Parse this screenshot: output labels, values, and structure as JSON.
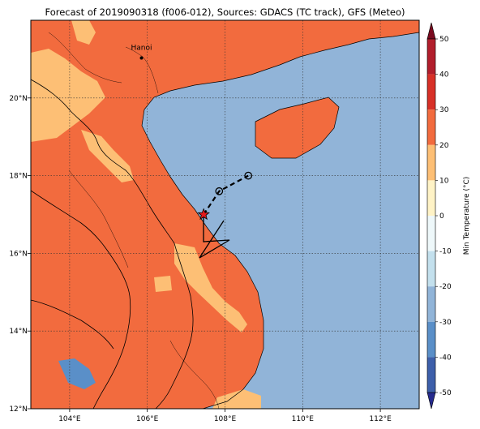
{
  "title": "Forecast of 2019090318 (f006-012), Sources: GDACS (TC track), GFS (Meteo)",
  "map": {
    "lon_range": [
      103,
      113
    ],
    "lat_range": [
      12,
      22
    ],
    "lon_ticks": [
      {
        "value": 104,
        "label": "104°E"
      },
      {
        "value": 106,
        "label": "106°E"
      },
      {
        "value": 108,
        "label": "108°E"
      },
      {
        "value": 110,
        "label": "110°E"
      },
      {
        "value": 112,
        "label": "112°E"
      }
    ],
    "lat_ticks": [
      {
        "value": 12,
        "label": "12°N"
      },
      {
        "value": 14,
        "label": "14°N"
      },
      {
        "value": 16,
        "label": "16°N"
      },
      {
        "value": 18,
        "label": "18°N"
      },
      {
        "value": 20,
        "label": "20°N"
      }
    ],
    "cities": [
      {
        "name": "Hanoi",
        "lon": 105.85,
        "lat": 21.03
      }
    ],
    "colors": {
      "sea": "#91b4d8",
      "land_warm": "#f26b3e",
      "land_mild": "#fdbf75",
      "cold": "#5a8fc8"
    }
  },
  "tc_track": {
    "current": {
      "lon": 107.45,
      "lat": 17.0
    },
    "forecast_points": [
      {
        "lon": 107.85,
        "lat": 17.6
      },
      {
        "lon": 108.6,
        "lat": 18.0
      }
    ]
  },
  "colorbar": {
    "label": "Min Temperature (°C)",
    "ticks": [
      50,
      40,
      30,
      20,
      10,
      0,
      -10,
      -20,
      -30,
      -40,
      -50
    ],
    "bands": [
      "#7a0a1f",
      "#b11e2c",
      "#d73027",
      "#f26b3e",
      "#fdbf75",
      "#fff3c6",
      "#eef8fa",
      "#c3e0ed",
      "#91b4d8",
      "#5a8fc8",
      "#3d5faa",
      "#262a8e"
    ]
  }
}
